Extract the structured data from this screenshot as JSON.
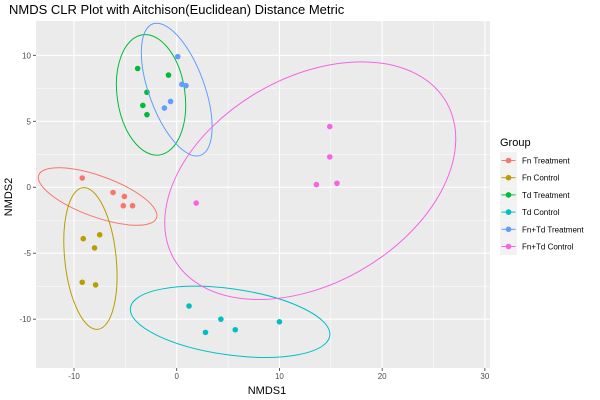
{
  "chart_data": {
    "type": "scatter",
    "title": "NMDS CLR Plot with Aitchison(Euclidean) Distance Metric",
    "xlabel": "NMDS1",
    "ylabel": "NMDS2",
    "xlim": [
      -13.7,
      30.5
    ],
    "ylim": [
      -13.7,
      12.6
    ],
    "xticks": [
      -10,
      0,
      10,
      20,
      30
    ],
    "yticks": [
      -10,
      -5,
      0,
      5,
      10
    ],
    "grid": true,
    "panel_background": "#ebebeb",
    "legend": {
      "title": "Group",
      "position": "right"
    },
    "series": [
      {
        "name": "Fn Treatment",
        "color": "#f8766d",
        "points": [
          [
            -9.2,
            0.7
          ],
          [
            -6.2,
            -0.4
          ],
          [
            -5.1,
            -0.7
          ],
          [
            -5.2,
            -1.4
          ],
          [
            -4.3,
            -1.4
          ]
        ],
        "ellipse": {
          "cx": -7.7,
          "cy": -0.7,
          "rx": 6.1,
          "ry": 1.55,
          "angle": -20
        }
      },
      {
        "name": "Fn Control",
        "color": "#b79f00",
        "points": [
          [
            -9.1,
            -3.9
          ],
          [
            -7.5,
            -3.6
          ],
          [
            -8.0,
            -4.6
          ],
          [
            -9.2,
            -7.2
          ],
          [
            -7.9,
            -7.4
          ]
        ],
        "ellipse": {
          "cx": -8.4,
          "cy": -5.4,
          "rx": 2.5,
          "ry": 5.4,
          "angle": 6
        }
      },
      {
        "name": "Td Treatment",
        "color": "#00ba38",
        "points": [
          [
            -3.8,
            9.0
          ],
          [
            -0.8,
            8.5
          ],
          [
            -2.9,
            7.2
          ],
          [
            -3.3,
            6.2
          ],
          [
            -2.9,
            5.5
          ]
        ],
        "ellipse": {
          "cx": -2.5,
          "cy": 7.0,
          "rx": 3.3,
          "ry": 4.6,
          "angle": 8
        }
      },
      {
        "name": "Td Control",
        "color": "#00bfc4",
        "points": [
          [
            1.2,
            -9.0
          ],
          [
            4.3,
            -10.0
          ],
          [
            10.0,
            -10.2
          ],
          [
            5.7,
            -10.8
          ],
          [
            2.8,
            -11.0
          ]
        ],
        "ellipse": {
          "cx": 5.2,
          "cy": -10.2,
          "rx": 9.8,
          "ry": 2.5,
          "angle": -8
        }
      },
      {
        "name": "Fn+Td Treatment",
        "color": "#619cff",
        "points": [
          [
            0.1,
            9.9
          ],
          [
            0.5,
            7.8
          ],
          [
            0.9,
            7.7
          ],
          [
            -0.6,
            6.5
          ],
          [
            -1.2,
            6.0
          ]
        ],
        "ellipse": {
          "cx": 0.0,
          "cy": 7.4,
          "rx": 2.7,
          "ry": 5.3,
          "angle": 20
        }
      },
      {
        "name": "Fn+Td Control",
        "color": "#f564e3",
        "points": [
          [
            14.9,
            4.6
          ],
          [
            14.9,
            2.3
          ],
          [
            15.6,
            0.3
          ],
          [
            13.6,
            0.2
          ],
          [
            1.9,
            -1.2
          ]
        ],
        "ellipse": {
          "cx": 13.0,
          "cy": 0.5,
          "rx": 15.3,
          "ry": 7.8,
          "angle": 30
        }
      }
    ]
  }
}
